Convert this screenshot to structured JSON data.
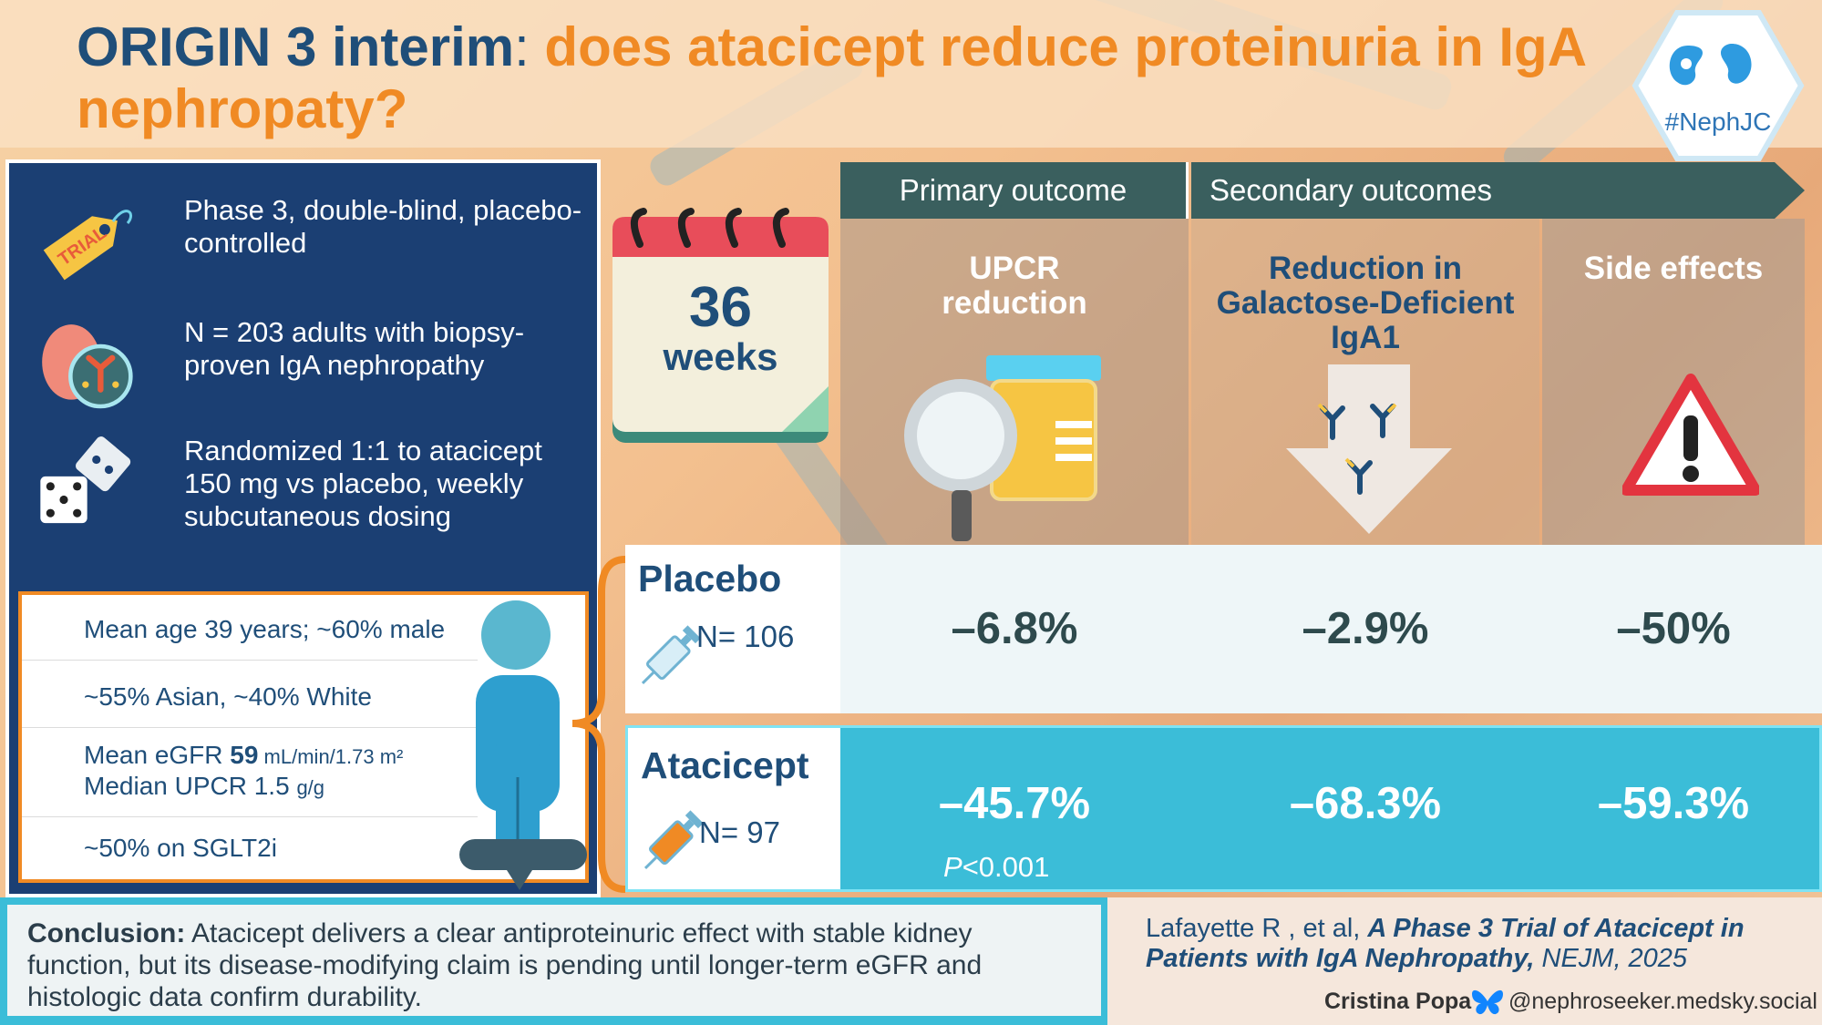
{
  "header": {
    "title_main": "ORIGIN 3 interim",
    "title_colon": ":",
    "title_question": " does atacicept reduce proteinuria in IgA nephropaty?",
    "badge_text": "#NephJC"
  },
  "design": {
    "features": [
      {
        "icon": "trial-tag-icon",
        "tag_text": "TRIAL",
        "text": "Phase 3, double-blind, placebo-controlled"
      },
      {
        "icon": "kidney-antibody-icon",
        "text": "N = 203 adults with biopsy-proven IgA nephropathy"
      },
      {
        "icon": "dice-icon",
        "text": "Randomized 1:1 to atacicept 150 mg vs placebo, weekly subcutaneous dosing"
      }
    ]
  },
  "demographics": {
    "row1": "Mean age 39 years; ~60% male",
    "row2": "~55% Asian, ~40% White",
    "row3_prefix": "Mean eGFR ",
    "row3_value": "59",
    "row3_unit": " mL/min/1.73 m²",
    "row4_prefix": "Median UPCR 1.5 ",
    "row4_unit": "g/g",
    "row5": "~50% on SGLT2i"
  },
  "duration": {
    "number": "36",
    "unit": "weeks"
  },
  "outcomes": {
    "primary_label": "Primary outcome",
    "secondary_label": "Secondary outcomes",
    "col1_title": "UPCR reduction",
    "col2_title": "Reduction in Galactose-Deficient IgA1",
    "col3_title": "Side effects"
  },
  "arms": {
    "placebo": {
      "name": "Placebo",
      "n": "N= 106",
      "upcr": "–6.8%",
      "gdiga1": "–2.9%",
      "side_effects": "–50%"
    },
    "atacicept": {
      "name": "Atacicept",
      "n": "N= 97",
      "upcr": "–45.7%",
      "gdiga1": "–68.3%",
      "side_effects": "–59.3%",
      "p_letter": "P",
      "p_rest": "<0.001"
    }
  },
  "footer": {
    "conclusion_label": "Conclusion:",
    "conclusion_text": " Atacicept delivers a clear antiproteinuric effect with stable kidney function, but its disease-modifying claim is pending until longer-term eGFR and histologic data confirm durability.",
    "citation_authors": "Lafayette R , et al, ",
    "citation_title": "A Phase 3 Trial of Atacicept in Patients with IgA Nephropathy,",
    "citation_journal": " NEJM, 2025",
    "author": "Cristina Popa",
    "handle": "@nephroseeker.medsky.social"
  },
  "colors": {
    "navy": "#1f4e79",
    "orange": "#f08a24",
    "teal": "#3bbdd8",
    "panel": "#1b3f73"
  }
}
